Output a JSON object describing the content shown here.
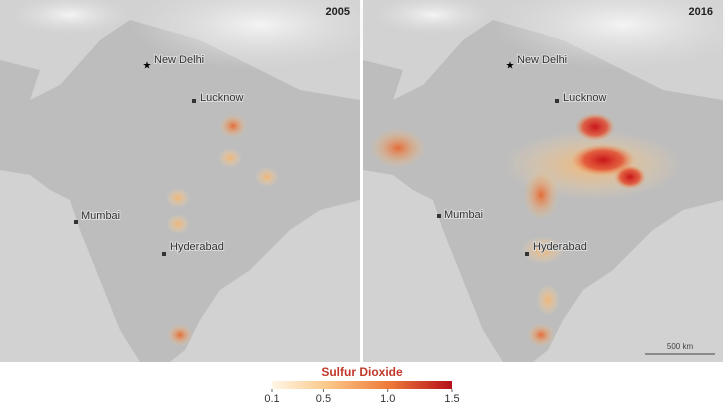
{
  "panels": [
    {
      "year": "2005",
      "cities": [
        "New Delhi",
        "Lucknow",
        "Mumbai",
        "Hyderabad"
      ]
    },
    {
      "year": "2016",
      "cities": [
        "New Delhi",
        "Lucknow",
        "Mumbai",
        "Hyderabad"
      ],
      "scale_bar": "500 km"
    }
  ],
  "legend": {
    "title": "Sulfur Dioxide",
    "range": [
      0.1,
      1.5
    ],
    "ticks": [
      0.1,
      0.5,
      {
        "value": 1,
        "label": "1.0"
      },
      1.5
    ]
  }
}
